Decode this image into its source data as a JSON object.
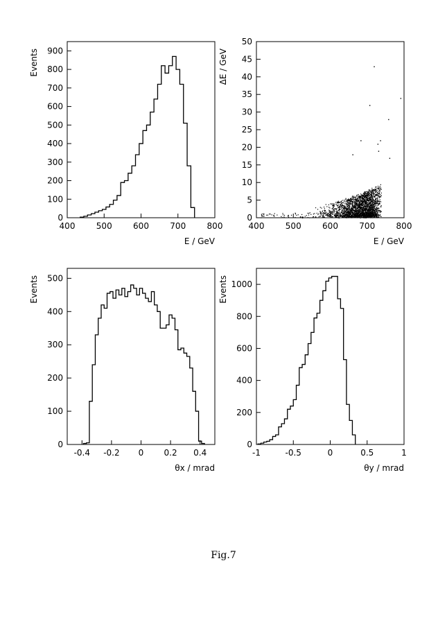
{
  "figure": {
    "caption": "Fig.7"
  },
  "chart_data": [
    {
      "id": "energy-hist",
      "type": "bar",
      "style": "step-histogram",
      "xlabel": "E / GeV",
      "ylabel": "Events",
      "xlim": [
        400,
        800
      ],
      "ylim": [
        0,
        950
      ],
      "xticks": [
        400,
        500,
        600,
        700,
        800
      ],
      "yticks": [
        0,
        100,
        200,
        300,
        400,
        500,
        600,
        700,
        800,
        900
      ],
      "bin_width": 10,
      "x": [
        440,
        450,
        460,
        470,
        480,
        490,
        500,
        510,
        520,
        530,
        540,
        550,
        560,
        570,
        580,
        590,
        600,
        610,
        620,
        630,
        640,
        650,
        660,
        670,
        680,
        690,
        700,
        710,
        720,
        730,
        740
      ],
      "values": [
        3,
        8,
        15,
        22,
        30,
        38,
        45,
        58,
        72,
        95,
        120,
        190,
        200,
        240,
        280,
        340,
        400,
        470,
        500,
        570,
        640,
        720,
        820,
        780,
        820,
        870,
        800,
        720,
        510,
        280,
        55
      ]
    },
    {
      "id": "energy-scatter",
      "type": "scatter",
      "xlabel": "E / GeV",
      "ylabel": "ΔE / GeV",
      "xlim": [
        400,
        800
      ],
      "ylim": [
        0,
        50
      ],
      "xticks": [
        400,
        500,
        600,
        700,
        800
      ],
      "yticks": [
        0,
        5,
        10,
        15,
        20,
        25,
        30,
        35,
        40,
        45,
        50
      ],
      "outliers": [
        [
          718,
          43
        ],
        [
          790,
          34
        ],
        [
          757,
          28
        ],
        [
          706,
          32
        ],
        [
          735,
          22
        ],
        [
          682,
          22
        ],
        [
          730,
          19
        ],
        [
          728,
          21
        ],
        [
          660,
          18
        ],
        [
          760,
          17
        ]
      ]
    },
    {
      "id": "theta-x-hist",
      "type": "bar",
      "style": "step-histogram",
      "xlabel": "θx / mrad",
      "ylabel": "Events",
      "xlim": [
        -0.5,
        0.5
      ],
      "ylim": [
        0,
        530
      ],
      "xticks": [
        -0.4,
        -0.2,
        0,
        0.2,
        0.4
      ],
      "yticks": [
        0,
        100,
        200,
        300,
        400,
        500
      ],
      "bin_width": 0.02,
      "x": [
        -0.38,
        -0.36,
        -0.34,
        -0.32,
        -0.3,
        -0.28,
        -0.26,
        -0.24,
        -0.22,
        -0.2,
        -0.18,
        -0.16,
        -0.14,
        -0.12,
        -0.1,
        -0.08,
        -0.06,
        -0.04,
        -0.02,
        0.0,
        0.02,
        0.04,
        0.06,
        0.08,
        0.1,
        0.12,
        0.14,
        0.16,
        0.18,
        0.2,
        0.22,
        0.24,
        0.26,
        0.28,
        0.3,
        0.32,
        0.34,
        0.36,
        0.38,
        0.4,
        0.42
      ],
      "values": [
        3,
        5,
        130,
        240,
        330,
        380,
        420,
        410,
        455,
        460,
        440,
        465,
        450,
        470,
        445,
        460,
        480,
        470,
        450,
        470,
        455,
        440,
        430,
        460,
        420,
        400,
        350,
        350,
        360,
        390,
        380,
        345,
        285,
        290,
        275,
        265,
        230,
        160,
        100,
        10,
        3
      ]
    },
    {
      "id": "theta-y-hist",
      "type": "bar",
      "style": "step-histogram",
      "xlabel": "θy / mrad",
      "ylabel": "Events",
      "xlim": [
        -1,
        1
      ],
      "ylim": [
        0,
        1100
      ],
      "xticks": [
        -1,
        -0.5,
        0,
        0.5,
        1
      ],
      "yticks": [
        0,
        200,
        400,
        600,
        800,
        1000
      ],
      "bin_width": 0.04,
      "x": [
        -0.96,
        -0.92,
        -0.88,
        -0.84,
        -0.8,
        -0.76,
        -0.72,
        -0.68,
        -0.64,
        -0.6,
        -0.56,
        -0.52,
        -0.48,
        -0.44,
        -0.4,
        -0.36,
        -0.32,
        -0.28,
        -0.24,
        -0.2,
        -0.16,
        -0.12,
        -0.08,
        -0.04,
        0.0,
        0.04,
        0.08,
        0.12,
        0.16,
        0.2,
        0.24,
        0.28,
        0.32
      ],
      "values": [
        3,
        8,
        15,
        20,
        30,
        50,
        60,
        110,
        130,
        160,
        220,
        240,
        280,
        370,
        480,
        500,
        560,
        630,
        700,
        790,
        820,
        900,
        960,
        1020,
        1040,
        1050,
        1050,
        910,
        850,
        530,
        250,
        150,
        60
      ]
    }
  ]
}
